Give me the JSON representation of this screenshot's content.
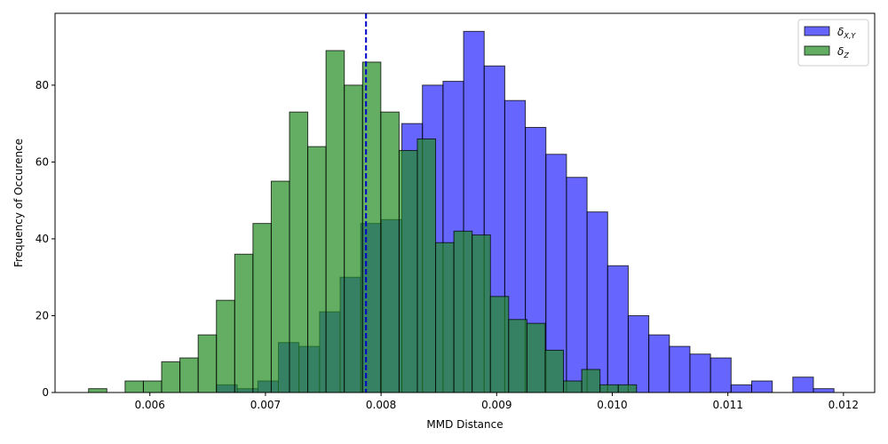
{
  "chart_data": {
    "type": "bar",
    "xlabel": "MMD Distance",
    "ylabel": "Frequency of Occurence",
    "xlim": [
      0.00518,
      0.01227
    ],
    "ylim": [
      0,
      98.7
    ],
    "xticks": [
      "0.006",
      "0.007",
      "0.008",
      "0.009",
      "0.010",
      "0.011",
      "0.012"
    ],
    "xtick_values": [
      0.006,
      0.007,
      0.008,
      0.009,
      0.01,
      0.011,
      0.012
    ],
    "yticks": [
      "0",
      "20",
      "40",
      "60",
      "80"
    ],
    "ytick_values": [
      0,
      20,
      40,
      60,
      80
    ],
    "grid": false,
    "legend_position": "top-right",
    "vline": {
      "x": 0.00787,
      "color": "#0000cc",
      "style": "dashed"
    },
    "series": [
      {
        "name": "δ",
        "name_sub": "X,Y",
        "color": "#0000ff",
        "alpha": 0.6,
        "bin_start": 0.006578,
        "bin_width": 0.000178,
        "values": [
          2,
          1,
          3,
          13,
          12,
          21,
          30,
          44,
          45,
          70,
          80,
          81,
          94,
          85,
          76,
          69,
          62,
          56,
          47,
          33,
          20,
          15,
          12,
          10,
          9,
          2,
          3,
          0,
          4,
          1
        ]
      },
      {
        "name": "δ",
        "name_sub": "Z",
        "color": "#228b22",
        "alpha": 0.7,
        "bin_start": 0.00547,
        "bin_width": 0.000158,
        "values": [
          1,
          0,
          3,
          3,
          8,
          9,
          15,
          24,
          36,
          44,
          55,
          73,
          64,
          89,
          80,
          86,
          73,
          63,
          66,
          39,
          42,
          41,
          25,
          19,
          18,
          11,
          3,
          6,
          2,
          2
        ]
      }
    ]
  }
}
